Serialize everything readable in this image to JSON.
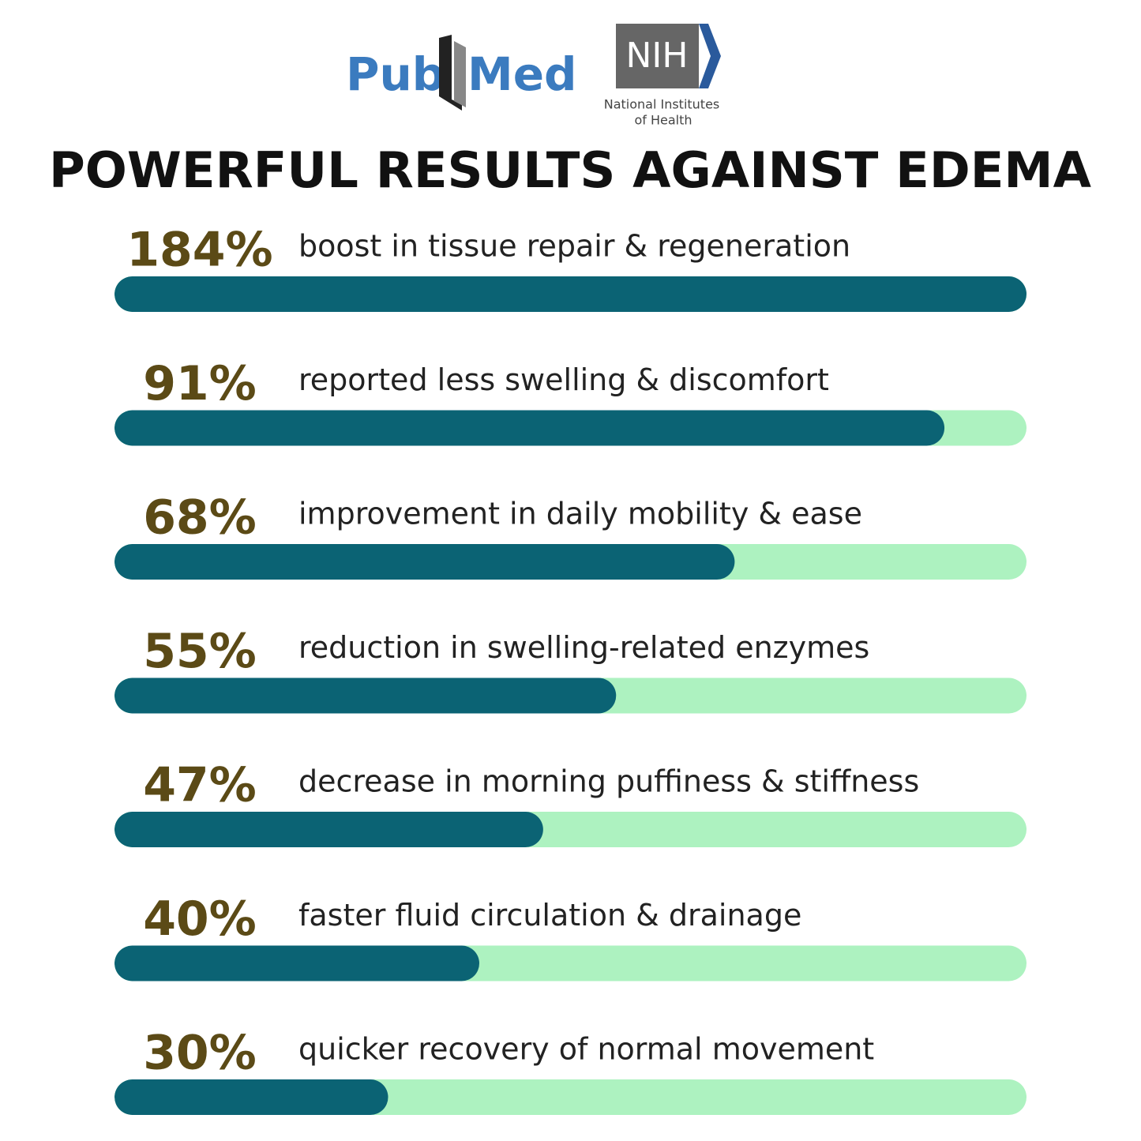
{
  "header": {
    "pubmed_left": "Pub",
    "pubmed_right": "Med",
    "nih_mark": "NIH",
    "nih_line1": "National Institutes",
    "nih_line2": "of Health"
  },
  "chart_data": {
    "type": "progress",
    "title": "POWERFUL RESULTS AGAINST EDEMA",
    "categories": [
      "boost in tissue repair & regeneration",
      "reported less swelling & discomfort",
      "improvement in daily mobility & ease",
      "reduction in swelling-related enzymes",
      "decrease in morning puffiness & stiffness",
      "faster fluid circulation & drainage",
      "quicker recovery of normal movement"
    ],
    "values": [
      184,
      91,
      68,
      55,
      47,
      40,
      30
    ],
    "value_labels": [
      "184%",
      "91%",
      "68%",
      "55%",
      "47%",
      "40%",
      "30%"
    ],
    "xlim": [
      0,
      100
    ],
    "color": "#0b6374",
    "track_color": "#adf2c0",
    "label_color": "#5b4a16"
  }
}
